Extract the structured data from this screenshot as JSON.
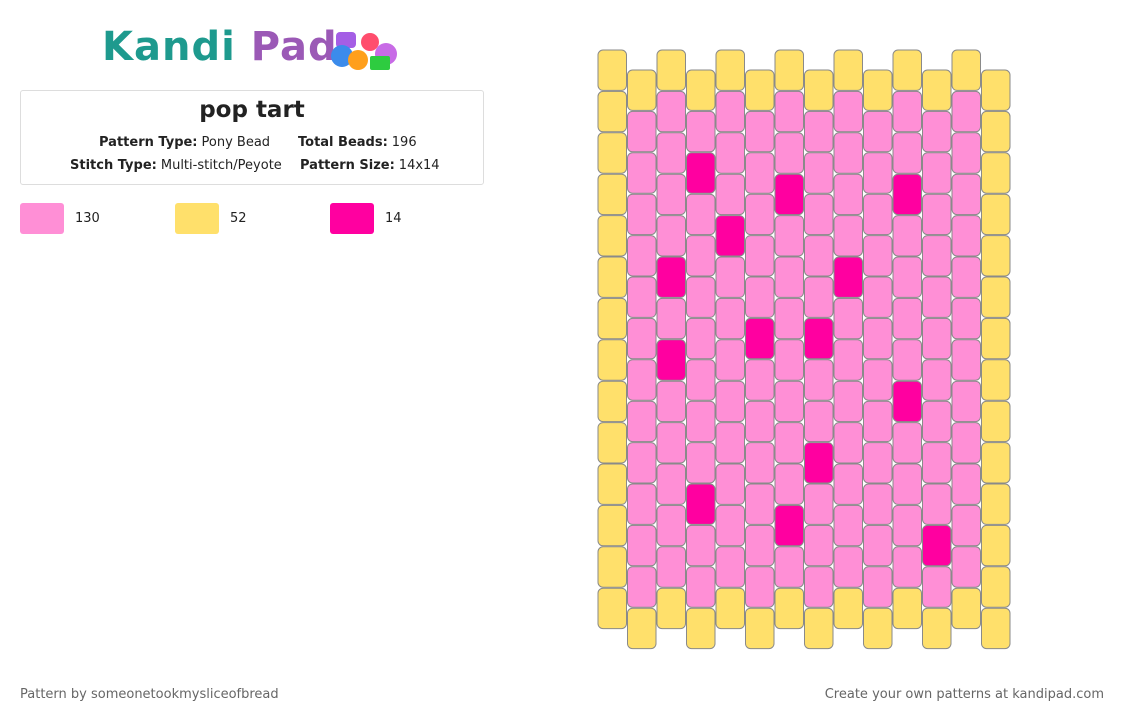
{
  "header": {
    "logo_left": "Kandi",
    "logo_right": "Pad"
  },
  "pattern": {
    "title": "pop tart",
    "details": [
      {
        "label": "Pattern Type:",
        "value": "Pony Bead"
      },
      {
        "label": "Total Beads:",
        "value": 196
      },
      {
        "label": "Stitch Type:",
        "value": "Multi-stitch/Peyote"
      },
      {
        "label": "Pattern Size:",
        "value": "14x14"
      }
    ],
    "legend": [
      {
        "color": "#ff8fd6",
        "count": 130
      },
      {
        "color": "#ffe06b",
        "count": 52
      },
      {
        "color": "#ff00a0",
        "count": 14
      }
    ],
    "columns": [
      "11111111111111",
      "10000000000001",
      "10000202000001",
      "10200000002001",
      "10002000000001",
      "10000020000001",
      "10020000000201",
      "10000020020001",
      "10000200000001",
      "10000000000001",
      "10020000200001",
      "10000000000201",
      "10000000000001",
      "11111111111111"
    ]
  },
  "footer": {
    "credit": "Pattern by someonetookmysliceofbread",
    "promo": "Create your own patterns at kandipad.com"
  }
}
